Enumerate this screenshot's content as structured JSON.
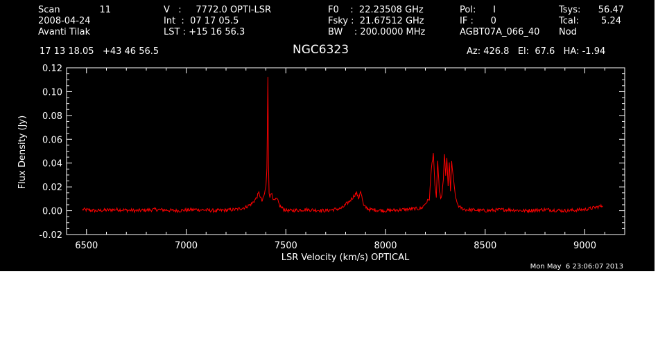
{
  "header": {
    "scan_label": "Scan",
    "scan_number": "11",
    "date": "2008-04-24",
    "observer": "Avanti Tilak",
    "velocity_line": "V   :     7772.0 OPTI-LSR",
    "int_line": "Int  :  07 17 05.5",
    "lst_line": "LST : +15 16 56.3",
    "f0_line": "F0    :  22.23508 GHz",
    "fsky_line": "Fsky :  21.67512 GHz",
    "bw_line": "BW    : 200.0000 MHz",
    "pol_line": "Pol:      I",
    "if_line": "IF :      0",
    "project": "AGBT07A_066_40",
    "tsys_label": "Tsys:",
    "tsys_value": "56.47",
    "tcal_label": "Tcal:",
    "tcal_value": "5.24",
    "mode": "Nod",
    "coords": "17 13 18.05   +43 46 56.5",
    "source": "NGC6323",
    "az_el_ha": "Az: 426.8   El:  67.6   HA: -1.94"
  },
  "footer": {
    "timestamp": "Mon May  6 23:06:07 2013"
  },
  "colors": {
    "background": "#000000",
    "axes": "#ffffff",
    "spectrum": "#ff0000"
  },
  "chart_data": {
    "type": "line",
    "title": "NGC6323",
    "xlabel": "LSR Velocity (km/s) OPTICAL",
    "ylabel": "Flux Density (Jy)",
    "xlim": [
      6400,
      9200
    ],
    "ylim": [
      -0.02,
      0.12
    ],
    "x_ticks": [
      "6500",
      "7000",
      "7500",
      "8000",
      "8500",
      "9000"
    ],
    "y_ticks": [
      "-0.02",
      "0.00",
      "0.02",
      "0.04",
      "0.06",
      "0.08",
      "0.10",
      "0.12"
    ],
    "grid": false,
    "series": [
      {
        "color": "#ff0000",
        "x": [
          6480,
          6550,
          6650,
          6750,
          6850,
          6950,
          7050,
          7150,
          7250,
          7300,
          7330,
          7350,
          7365,
          7380,
          7390,
          7400,
          7405,
          7410,
          7413,
          7416,
          7420,
          7430,
          7440,
          7455,
          7470,
          7490,
          7520,
          7600,
          7700,
          7780,
          7820,
          7840,
          7855,
          7865,
          7875,
          7890,
          7920,
          8000,
          8100,
          8180,
          8220,
          8230,
          8240,
          8248,
          8255,
          8262,
          8270,
          8280,
          8290,
          8296,
          8302,
          8308,
          8314,
          8320,
          8326,
          8332,
          8338,
          8345,
          8355,
          8370,
          8400,
          8500,
          8600,
          8700,
          8800,
          8900,
          9000,
          9060,
          9090
        ],
        "y": [
          0.001,
          0.0,
          0.001,
          0.0,
          0.001,
          0.0,
          0.001,
          0.0,
          0.001,
          0.003,
          0.006,
          0.01,
          0.015,
          0.008,
          0.012,
          0.02,
          0.035,
          0.113,
          0.04,
          0.016,
          0.012,
          0.015,
          0.008,
          0.01,
          0.004,
          0.001,
          0.0,
          0.001,
          0.0,
          0.002,
          0.008,
          0.012,
          0.015,
          0.01,
          0.017,
          0.004,
          0.001,
          0.0,
          0.001,
          0.002,
          0.01,
          0.035,
          0.049,
          0.02,
          0.012,
          0.042,
          0.015,
          0.01,
          0.025,
          0.047,
          0.03,
          0.044,
          0.02,
          0.041,
          0.015,
          0.042,
          0.03,
          0.02,
          0.008,
          0.003,
          0.001,
          0.0,
          0.001,
          0.0,
          0.001,
          0.0,
          0.001,
          0.003,
          0.004
        ]
      }
    ]
  }
}
